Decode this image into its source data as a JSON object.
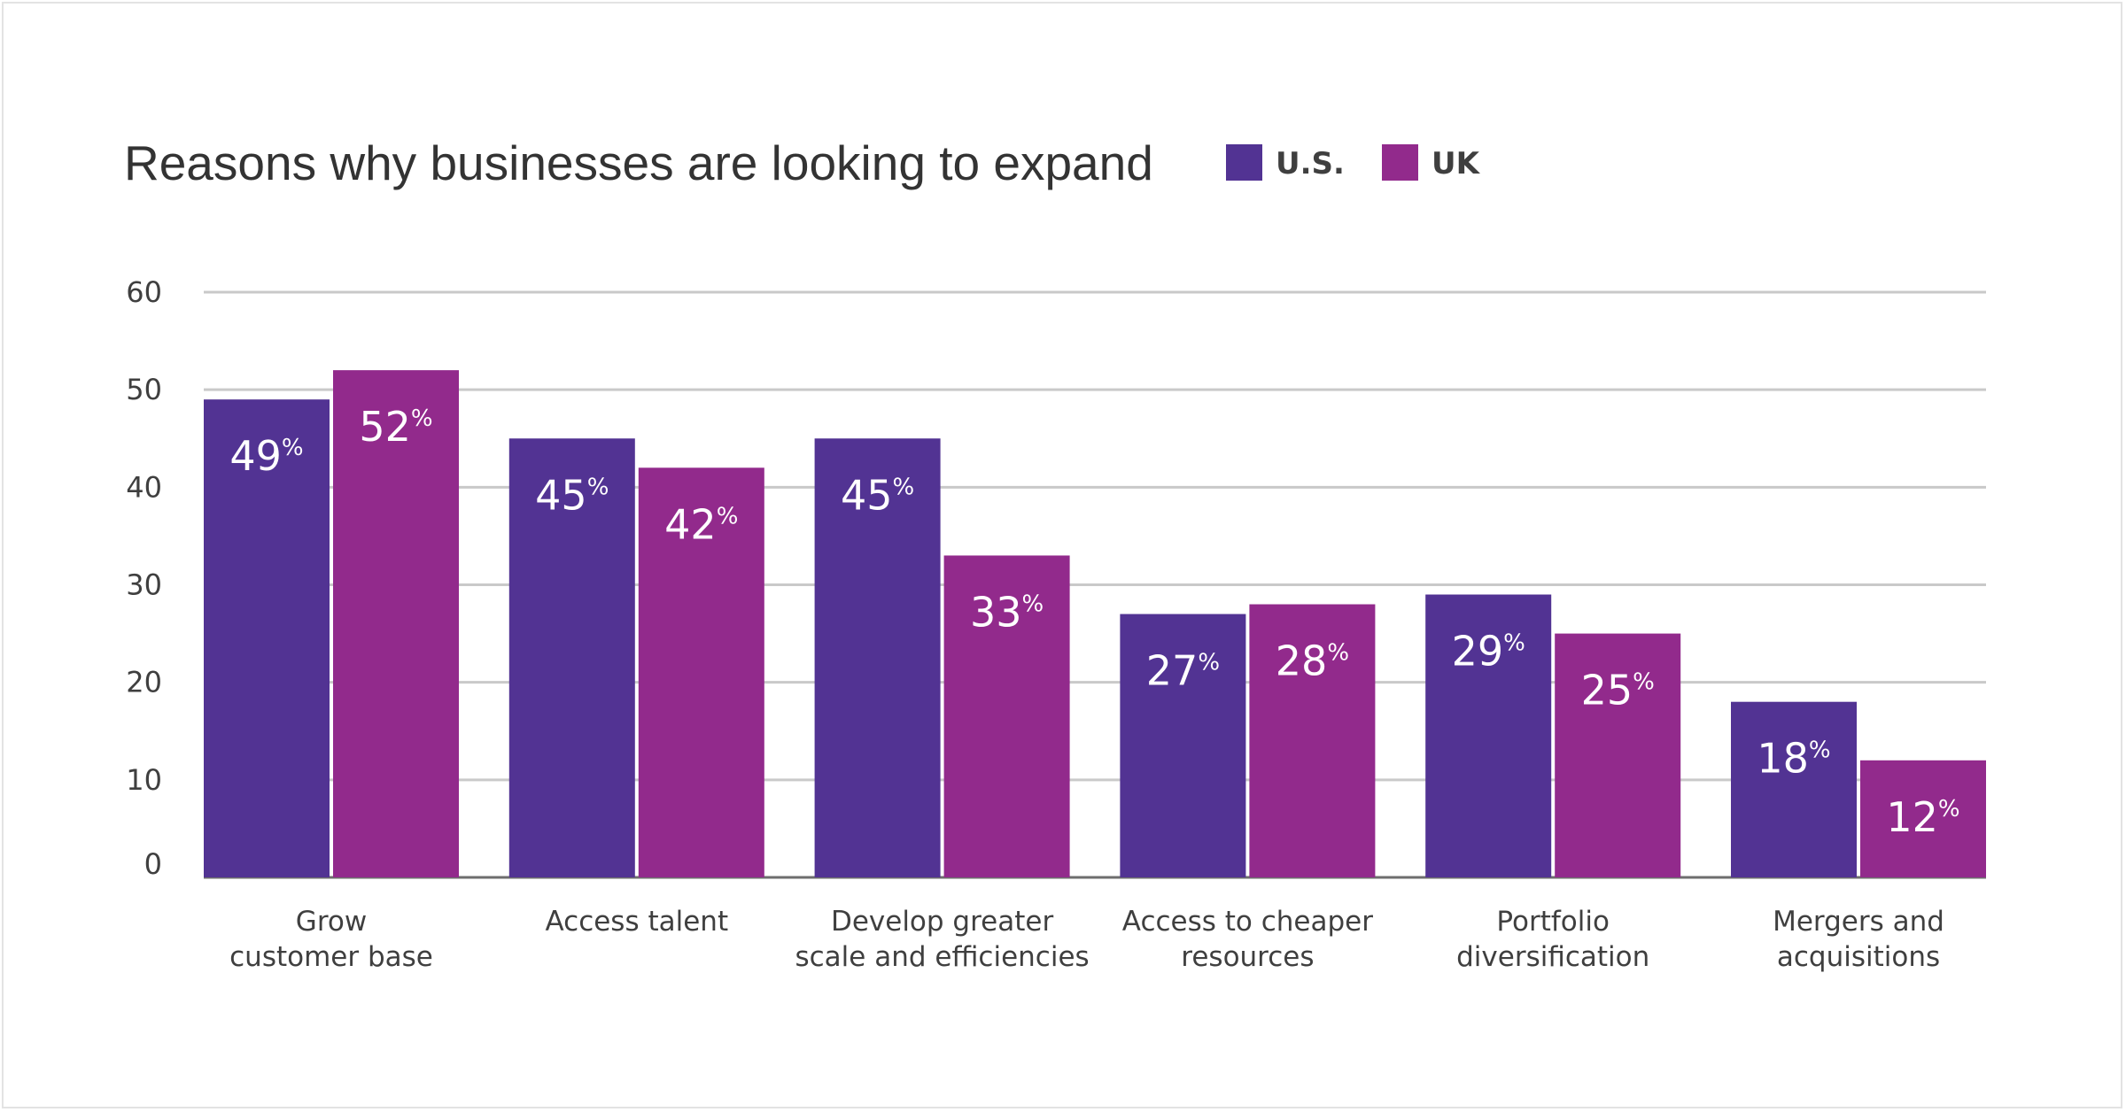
{
  "colors": {
    "us": "#523393",
    "uk": "#922a8c",
    "grid": "#c9c9c9",
    "baseline": "#6e6e6e"
  },
  "chart_data": {
    "type": "bar",
    "title": "Reasons why businesses are looking to expand",
    "categories": [
      [
        "Grow",
        "customer base"
      ],
      [
        "Access talent"
      ],
      [
        "Develop greater",
        "scale and efficiencies"
      ],
      [
        "Access to cheaper",
        "resources"
      ],
      [
        "Portfolio",
        "diversification"
      ],
      [
        "Mergers and",
        "acquisitions"
      ]
    ],
    "series": [
      {
        "name": "U.S.",
        "values": [
          49,
          45,
          45,
          27,
          29,
          18
        ]
      },
      {
        "name": "UK",
        "values": [
          52,
          42,
          33,
          28,
          25,
          12
        ]
      }
    ],
    "value_suffix": "%",
    "ylim": [
      0,
      60
    ],
    "yticks": [
      0,
      10,
      20,
      30,
      40,
      50,
      60
    ],
    "grid": true,
    "legend_position": "top, right of title"
  }
}
